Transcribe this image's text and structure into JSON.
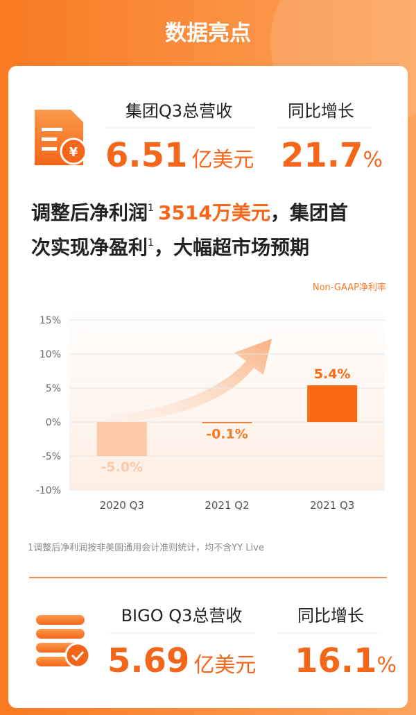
{
  "header": {
    "title": "数据亮点"
  },
  "group": {
    "revenue_label": "集团Q3总营收",
    "revenue_value": "6.51",
    "revenue_unit": "亿美元",
    "growth_label": "同比增长",
    "growth_value": "21.7",
    "growth_unit": "%"
  },
  "headline": {
    "line1": [
      "调整后净利润",
      "1",
      "3514万美元",
      "，集团首"
    ],
    "line2": [
      "次实现净盈利",
      "1",
      "，大幅超市场预期"
    ]
  },
  "chart_data": {
    "type": "bar",
    "categories": [
      "2020 Q3",
      "2021 Q2",
      "2021 Q3"
    ],
    "series": [
      {
        "name": "Non-GAAP净利率",
        "color": "#f47a2a",
        "values": [
          -5.0,
          -0.1,
          5.4
        ],
        "value_labels": [
          "-5.0%",
          "-0.1%",
          "5.4%"
        ],
        "colors": [
          "#fbc9a6",
          "#f47a2a",
          "#f96a12"
        ]
      }
    ],
    "ylim": [
      -10,
      15
    ],
    "yticks": [
      {
        "value": -10,
        "label": "-10%"
      },
      {
        "value": -5,
        "label": "-5%"
      },
      {
        "value": 0,
        "label": "0%"
      },
      {
        "value": 5,
        "label": "5%"
      },
      {
        "value": 10,
        "label": "10%"
      },
      {
        "value": 15,
        "label": "15%"
      }
    ],
    "grid": true
  },
  "footnote": "1调整后净利润按非美国通用会计准则统计，均不含YY Live",
  "bigo": {
    "revenue_label": "BIGO Q3总营收",
    "revenue_value": "5.69",
    "revenue_unit": "亿美元",
    "growth_label": "同比增长",
    "growth_value": "16.1",
    "growth_unit": "%"
  }
}
